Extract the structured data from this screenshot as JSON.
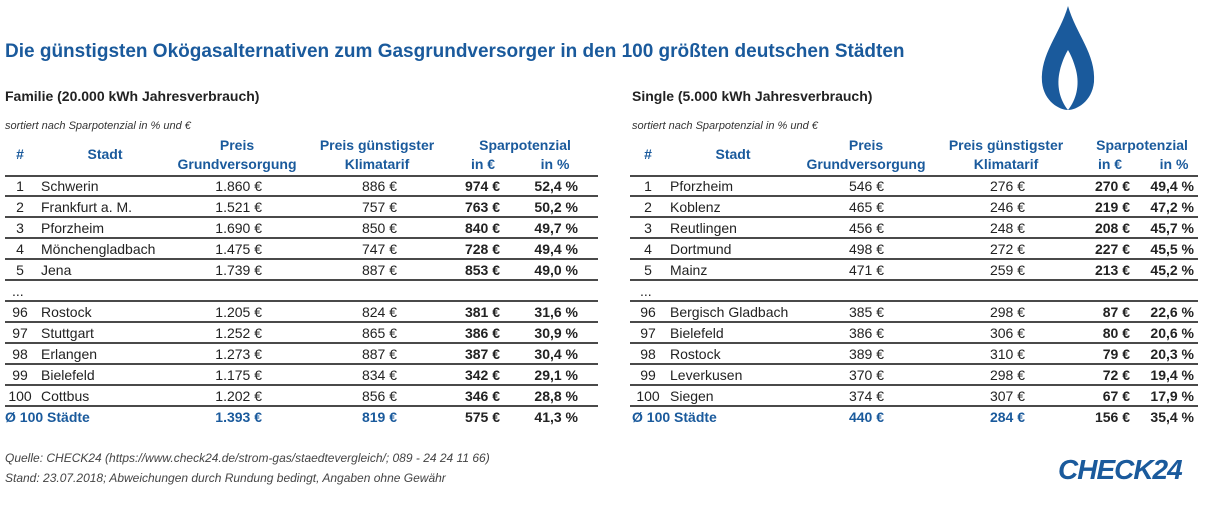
{
  "title": "Die günstigsten Okögasalternativen zum Gasgrundversorger in den 100 größten deutschen Städten",
  "tables": [
    {
      "heading": "Familie (20.000 kWh Jahresverbrauch)",
      "note": "sortiert nach Sparpotenzial in % und €",
      "header": {
        "num": "#",
        "city": "Stadt",
        "grund": [
          "Preis",
          "Grundversorgung"
        ],
        "klima": [
          "Preis günstigster",
          "Klimatarif"
        ],
        "spar": "Sparpotenzial",
        "eur": "in €",
        "pct": "in %"
      },
      "rows_top": [
        [
          "1",
          "Schwerin",
          "1.860 €",
          "886 €",
          "974 €",
          "52,4 %"
        ],
        [
          "2",
          "Frankfurt a. M.",
          "1.521 €",
          "757 €",
          "763 €",
          "50,2 %"
        ],
        [
          "3",
          "Pforzheim",
          "1.690 €",
          "850 €",
          "840 €",
          "49,7 %"
        ],
        [
          "4",
          "Mönchengladbach",
          "1.475 €",
          "747 €",
          "728 €",
          "49,4 %"
        ],
        [
          "5",
          "Jena",
          "1.739 €",
          "887 €",
          "853 €",
          "49,0 %"
        ]
      ],
      "ellipsis": "...",
      "rows_bottom": [
        [
          "96",
          "Rostock",
          "1.205 €",
          "824 €",
          "381 €",
          "31,6 %"
        ],
        [
          "97",
          "Stuttgart",
          "1.252 €",
          "865 €",
          "386 €",
          "30,9 %"
        ],
        [
          "98",
          "Erlangen",
          "1.273 €",
          "887 €",
          "387 €",
          "30,4 %"
        ],
        [
          "99",
          "Bielefeld",
          "1.175 €",
          "834 €",
          "342 €",
          "29,1 %"
        ],
        [
          "100",
          "Cottbus",
          "1.202 €",
          "856 €",
          "346 €",
          "28,8 %"
        ]
      ],
      "total": [
        "Ø 100 Städte",
        "1.393 €",
        "819 €",
        "575 €",
        "41,3 %"
      ]
    },
    {
      "heading": "Single (5.000 kWh Jahresverbrauch)",
      "note": "sortiert nach Sparpotenzial in % und €",
      "header": {
        "num": "#",
        "city": "Stadt",
        "grund": [
          "Preis",
          "Grundversorgung"
        ],
        "klima": [
          "Preis günstigster",
          "Klimatarif"
        ],
        "spar": "Sparpotenzial",
        "eur": "in €",
        "pct": "in %"
      },
      "rows_top": [
        [
          "1",
          "Pforzheim",
          "546 €",
          "276 €",
          "270 €",
          "49,4 %"
        ],
        [
          "2",
          "Koblenz",
          "465 €",
          "246 €",
          "219 €",
          "47,2 %"
        ],
        [
          "3",
          "Reutlingen",
          "456 €",
          "248 €",
          "208 €",
          "45,7 %"
        ],
        [
          "4",
          "Dortmund",
          "498 €",
          "272 €",
          "227 €",
          "45,5 %"
        ],
        [
          "5",
          "Mainz",
          "471 €",
          "259 €",
          "213 €",
          "45,2 %"
        ]
      ],
      "ellipsis": "...",
      "rows_bottom": [
        [
          "96",
          "Bergisch Gladbach",
          "385 €",
          "298 €",
          "87 €",
          "22,6 %"
        ],
        [
          "97",
          "Bielefeld",
          "386 €",
          "306 €",
          "80 €",
          "20,6 %"
        ],
        [
          "98",
          "Rostock",
          "389 €",
          "310 €",
          "79 €",
          "20,3 %"
        ],
        [
          "99",
          "Leverkusen",
          "370 €",
          "298 €",
          "72 €",
          "19,4 %"
        ],
        [
          "100",
          "Siegen",
          "374 €",
          "307 €",
          "67 €",
          "17,9 %"
        ]
      ],
      "total": [
        "Ø 100 Städte",
        "440 €",
        "284 €",
        "156 €",
        "35,4 %"
      ]
    }
  ],
  "footer": {
    "source": "Quelle: CHECK24 (https://www.check24.de/strom-gas/staedtevergleich/; 089 - 24 24 11 66)",
    "stand": "Stand: 23.07.2018; Abweichungen durch Rundung bedingt, Angaben ohne Gewähr"
  },
  "logo": "CHECK24"
}
